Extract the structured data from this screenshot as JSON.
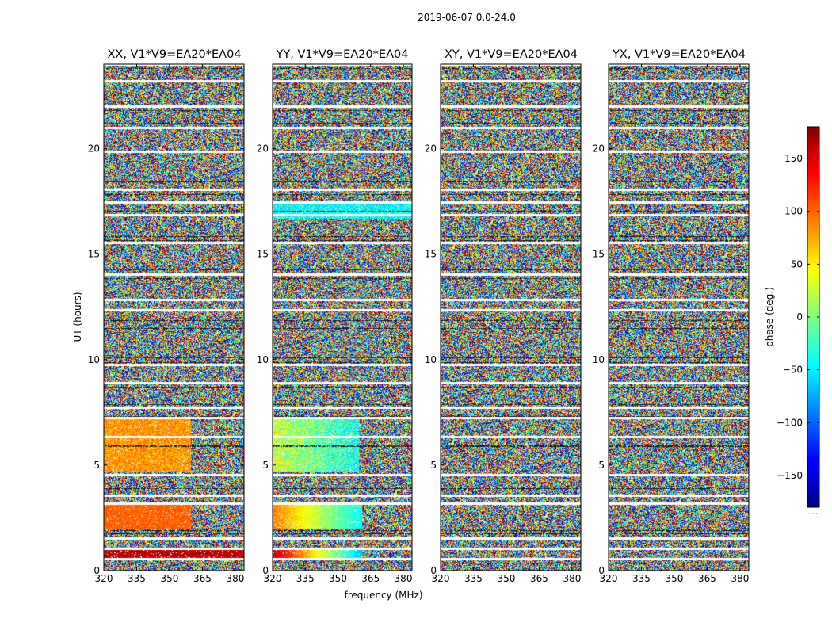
{
  "chart_data": {
    "type": "heatmap",
    "suptitle": "2019-06-07 0.0-24.0",
    "panels": [
      {
        "title": "XX, V1*V9=EA20*EA04"
      },
      {
        "title": "YY, V1*V9=EA20*EA04"
      },
      {
        "title": "XY, V1*V9=EA20*EA04"
      },
      {
        "title": "YX, V1*V9=EA20*EA04"
      }
    ],
    "xlabel": "frequency (MHz)",
    "ylabel": "UT (hours)",
    "xlim": [
      320,
      384
    ],
    "ylim": [
      0,
      24
    ],
    "xticks": [
      "320",
      "335",
      "350",
      "365",
      "380"
    ],
    "xtick_values": [
      320,
      335,
      350,
      365,
      380
    ],
    "yticks": [
      "0",
      "5",
      "10",
      "15",
      "20"
    ],
    "ytick_values": [
      0,
      5,
      10,
      15,
      20
    ],
    "colorbar": {
      "label": "phase (deg.)",
      "range": [
        -180,
        180
      ],
      "ticks": [
        "−150",
        "−100",
        "−50",
        "0",
        "50",
        "100",
        "150"
      ],
      "tick_values": [
        -150,
        -100,
        -50,
        0,
        50,
        100,
        150
      ],
      "colormap": "jet",
      "footnote": "....."
    },
    "gaps_hours": [
      0.55,
      1.05,
      1.55,
      3.2,
      3.55,
      4.55,
      6.35,
      7.25,
      7.75,
      8.9,
      9.75,
      12.35,
      12.85,
      14.05,
      15.55,
      16.85,
      17.45,
      18.05,
      19.85,
      21.0,
      22.0,
      23.2,
      24.0
    ],
    "colors": {
      "frame": "#000000",
      "background": "#ffffff"
    }
  }
}
